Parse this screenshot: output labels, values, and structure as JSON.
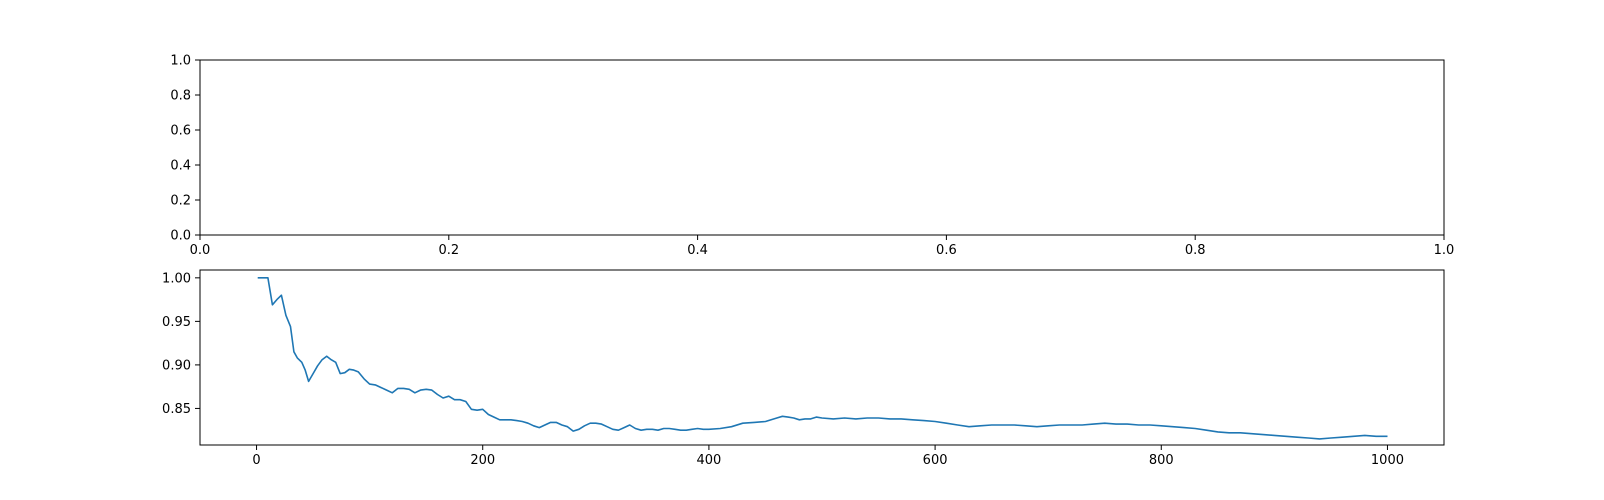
{
  "chart_data": [
    {
      "type": "line",
      "title": "",
      "xlabel": "",
      "ylabel": "",
      "xlim": [
        0.0,
        1.0
      ],
      "ylim": [
        0.0,
        1.0
      ],
      "xticks": [
        "0.0",
        "0.2",
        "0.4",
        "0.6",
        "0.8",
        "1.0"
      ],
      "yticks": [
        "0.0",
        "0.2",
        "0.4",
        "0.6",
        "0.8",
        "1.0"
      ],
      "grid": false,
      "series": []
    },
    {
      "type": "line",
      "title": "",
      "xlabel": "",
      "ylabel": "",
      "xlim": [
        -50,
        1050
      ],
      "ylim": [
        0.808,
        1.009
      ],
      "xticks": [
        "0",
        "200",
        "400",
        "600",
        "800",
        "1000"
      ],
      "yticks": [
        "0.85",
        "0.90",
        "0.95",
        "1.00"
      ],
      "grid": false,
      "color": "#1f77b4",
      "series": [
        {
          "x": [
            1,
            5,
            10,
            14,
            18,
            22,
            26,
            30,
            33,
            36,
            40,
            43,
            46,
            50,
            54,
            58,
            62,
            66,
            70,
            74,
            78,
            82,
            86,
            90,
            95,
            100,
            105,
            110,
            115,
            120,
            125,
            130,
            135,
            140,
            145,
            150,
            155,
            160,
            165,
            170,
            175,
            180,
            185,
            190,
            195,
            200,
            205,
            210,
            215,
            220,
            225,
            230,
            235,
            240,
            245,
            250,
            255,
            260,
            265,
            270,
            275,
            280,
            285,
            290,
            295,
            300,
            305,
            310,
            315,
            320,
            325,
            330,
            335,
            340,
            345,
            350,
            355,
            360,
            365,
            370,
            375,
            380,
            385,
            390,
            395,
            400,
            410,
            420,
            430,
            440,
            450,
            460,
            465,
            470,
            475,
            480,
            485,
            490,
            495,
            500,
            510,
            520,
            530,
            540,
            550,
            560,
            570,
            580,
            590,
            600,
            610,
            620,
            630,
            640,
            650,
            660,
            670,
            680,
            690,
            700,
            710,
            720,
            730,
            740,
            750,
            760,
            770,
            780,
            790,
            800,
            810,
            820,
            830,
            840,
            850,
            860,
            870,
            880,
            890,
            900,
            910,
            920,
            930,
            940,
            950,
            960,
            970,
            980,
            990,
            1000
          ],
          "values": [
            1.0,
            1.0,
            1.0,
            0.969,
            0.975,
            0.98,
            0.957,
            0.944,
            0.915,
            0.908,
            0.903,
            0.894,
            0.881,
            0.89,
            0.899,
            0.906,
            0.91,
            0.906,
            0.903,
            0.89,
            0.891,
            0.895,
            0.894,
            0.892,
            0.884,
            0.878,
            0.877,
            0.874,
            0.871,
            0.868,
            0.873,
            0.873,
            0.872,
            0.868,
            0.871,
            0.872,
            0.871,
            0.866,
            0.862,
            0.864,
            0.86,
            0.86,
            0.858,
            0.849,
            0.848,
            0.849,
            0.843,
            0.84,
            0.837,
            0.837,
            0.837,
            0.836,
            0.835,
            0.833,
            0.83,
            0.828,
            0.831,
            0.834,
            0.834,
            0.831,
            0.829,
            0.824,
            0.826,
            0.83,
            0.833,
            0.833,
            0.832,
            0.829,
            0.826,
            0.825,
            0.828,
            0.831,
            0.827,
            0.825,
            0.826,
            0.826,
            0.825,
            0.827,
            0.827,
            0.826,
            0.825,
            0.825,
            0.826,
            0.827,
            0.826,
            0.826,
            0.827,
            0.829,
            0.833,
            0.834,
            0.835,
            0.839,
            0.841,
            0.84,
            0.839,
            0.837,
            0.838,
            0.838,
            0.84,
            0.839,
            0.838,
            0.839,
            0.838,
            0.839,
            0.839,
            0.838,
            0.838,
            0.837,
            0.836,
            0.835,
            0.833,
            0.831,
            0.829,
            0.83,
            0.831,
            0.831,
            0.831,
            0.83,
            0.829,
            0.83,
            0.831,
            0.831,
            0.831,
            0.832,
            0.833,
            0.832,
            0.832,
            0.831,
            0.831,
            0.83,
            0.829,
            0.828,
            0.827,
            0.825,
            0.823,
            0.822,
            0.822,
            0.821,
            0.82,
            0.819,
            0.818,
            0.817,
            0.816,
            0.815,
            0.816,
            0.817,
            0.818,
            0.819,
            0.818,
            0.818
          ]
        }
      ]
    }
  ]
}
